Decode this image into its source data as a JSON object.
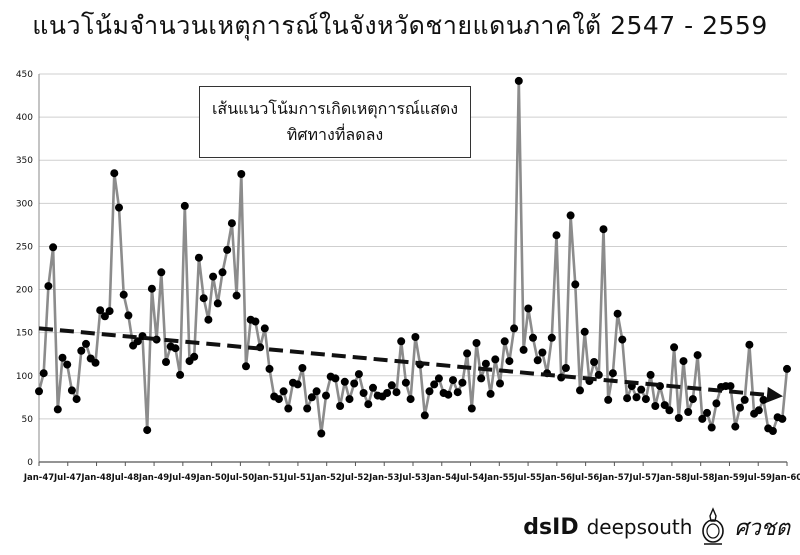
{
  "title": "แนวโน้มจำนวนเหตุการณ์ในจังหวัดชายแดนภาคใต้  2547  -  2559",
  "annotation": {
    "line1": "เส้นแนวโน้มการเกิดเหตุการณ์แสดง",
    "line2": "ทิศทางที่ลดลง"
  },
  "footer": {
    "brand1": "dsID",
    "brand2": "deepsouth",
    "brand3": "ศวชต"
  },
  "chart_data": {
    "type": "line",
    "ylim": [
      0,
      450
    ],
    "yticks": [
      0,
      50,
      100,
      150,
      200,
      250,
      300,
      350,
      400,
      450
    ],
    "grid": true,
    "xticklabels": [
      "Jan-47",
      "Jul-47",
      "Jan-48",
      "Jul-48",
      "Jan-49",
      "Jul-49",
      "Jan-50",
      "Jul-50",
      "Jan-51",
      "Jul-51",
      "Jan-52",
      "Jul-52",
      "Jan-53",
      "Jul-53",
      "Jan-54",
      "Jul-54",
      "Jan-55",
      "Jul-55",
      "Jan-56",
      "Jul-56",
      "Jan-57",
      "Jul-57",
      "Jan-58",
      "Jul-58",
      "Jan-59",
      "Jul-59",
      "Jan-60"
    ],
    "series": [
      {
        "values": [
          82,
          103,
          204,
          249,
          61,
          121,
          113,
          83,
          73,
          129,
          137,
          120,
          115,
          176,
          169,
          175,
          335,
          295,
          194,
          170,
          135,
          140,
          146,
          37,
          201,
          142,
          220,
          116,
          134,
          132,
          101,
          297,
          117,
          122,
          237,
          190,
          165,
          215,
          184,
          220,
          246,
          277,
          193,
          334,
          111,
          165,
          163,
          133,
          155,
          108,
          76,
          73,
          82,
          62,
          92,
          90,
          109,
          62,
          75,
          82,
          33,
          77,
          99,
          97,
          65,
          93,
          73,
          91,
          102,
          80,
          67,
          86,
          77,
          76,
          80,
          89,
          81,
          140,
          92,
          73,
          145,
          113,
          54,
          82,
          90,
          97,
          80,
          78,
          95,
          81,
          92,
          126,
          62,
          138,
          97,
          114,
          79,
          119,
          91,
          140,
          117,
          155,
          442,
          130,
          178,
          144,
          118,
          127,
          103,
          144,
          263,
          98,
          109,
          286,
          206,
          83,
          151,
          94,
          116,
          101,
          270,
          72,
          103,
          172,
          142,
          74,
          88,
          75,
          84,
          73,
          101,
          65,
          88,
          66,
          60,
          133,
          51,
          117,
          58,
          73,
          124,
          50,
          57,
          40,
          68,
          87,
          88,
          88,
          41,
          63,
          72,
          136,
          56,
          60,
          72,
          39,
          36,
          52,
          50,
          108
        ]
      }
    ],
    "trend": {
      "start": 155,
      "end": 77
    }
  }
}
